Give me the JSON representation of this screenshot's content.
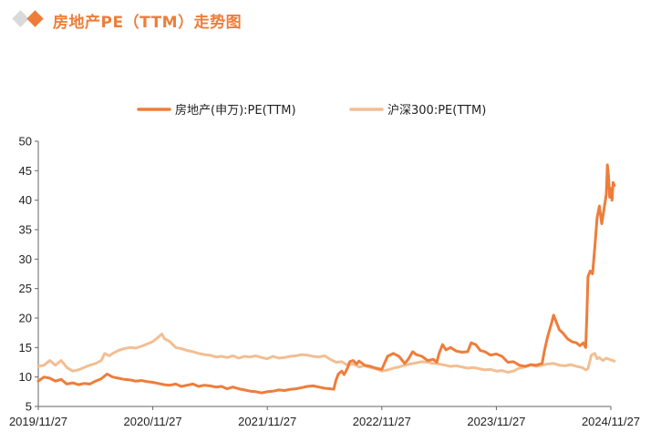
{
  "header": {
    "title": "房地产PE（TTM）走势图",
    "accent_color": "#EE7D3A",
    "secondary_color": "#D9D9D9"
  },
  "chart_data": {
    "type": "line",
    "title": "房地产PE（TTM）走势图",
    "xlabel": "",
    "ylabel": "",
    "ylim": [
      5,
      50
    ],
    "yticks": [
      5,
      10,
      15,
      20,
      25,
      30,
      35,
      40,
      45,
      50
    ],
    "xlim": [
      0,
      5
    ],
    "xticks": [
      0,
      1,
      2,
      3,
      4,
      5
    ],
    "xtick_labels": [
      "2019/11/27",
      "2020/11/27",
      "2021/11/27",
      "2022/11/27",
      "2023/11/27",
      "2024/11/27"
    ],
    "grid": false,
    "legend_position": "top-center",
    "series": [
      {
        "name": "房地产(申万):PE(TTM)",
        "color": "#EE7D3A",
        "points": [
          [
            0.0,
            9.3
          ],
          [
            0.05,
            10.0
          ],
          [
            0.1,
            9.8
          ],
          [
            0.15,
            9.3
          ],
          [
            0.2,
            9.6
          ],
          [
            0.25,
            8.8
          ],
          [
            0.3,
            9.0
          ],
          [
            0.35,
            8.7
          ],
          [
            0.4,
            8.9
          ],
          [
            0.45,
            8.8
          ],
          [
            0.5,
            9.3
          ],
          [
            0.55,
            9.7
          ],
          [
            0.6,
            10.5
          ],
          [
            0.65,
            10.0
          ],
          [
            0.7,
            9.8
          ],
          [
            0.75,
            9.6
          ],
          [
            0.8,
            9.5
          ],
          [
            0.85,
            9.3
          ],
          [
            0.9,
            9.4
          ],
          [
            0.95,
            9.2
          ],
          [
            1.0,
            9.1
          ],
          [
            1.05,
            8.9
          ],
          [
            1.1,
            8.7
          ],
          [
            1.15,
            8.6
          ],
          [
            1.2,
            8.8
          ],
          [
            1.25,
            8.4
          ],
          [
            1.3,
            8.6
          ],
          [
            1.35,
            8.8
          ],
          [
            1.4,
            8.4
          ],
          [
            1.45,
            8.6
          ],
          [
            1.5,
            8.5
          ],
          [
            1.55,
            8.3
          ],
          [
            1.6,
            8.4
          ],
          [
            1.65,
            8.0
          ],
          [
            1.7,
            8.3
          ],
          [
            1.75,
            8.0
          ],
          [
            1.8,
            7.8
          ],
          [
            1.85,
            7.6
          ],
          [
            1.9,
            7.5
          ],
          [
            1.95,
            7.3
          ],
          [
            2.0,
            7.5
          ],
          [
            2.05,
            7.6
          ],
          [
            2.1,
            7.8
          ],
          [
            2.15,
            7.7
          ],
          [
            2.2,
            7.9
          ],
          [
            2.25,
            8.0
          ],
          [
            2.3,
            8.2
          ],
          [
            2.35,
            8.4
          ],
          [
            2.4,
            8.5
          ],
          [
            2.45,
            8.3
          ],
          [
            2.5,
            8.1
          ],
          [
            2.55,
            8.0
          ],
          [
            2.58,
            7.9
          ],
          [
            2.6,
            9.5
          ],
          [
            2.62,
            10.5
          ],
          [
            2.65,
            11.0
          ],
          [
            2.67,
            10.4
          ],
          [
            2.7,
            11.5
          ],
          [
            2.72,
            12.6
          ],
          [
            2.75,
            12.8
          ],
          [
            2.78,
            12.2
          ],
          [
            2.8,
            12.7
          ],
          [
            2.85,
            12.0
          ],
          [
            2.9,
            11.8
          ],
          [
            2.95,
            11.5
          ],
          [
            3.0,
            11.3
          ],
          [
            3.05,
            13.5
          ],
          [
            3.1,
            14.0
          ],
          [
            3.15,
            13.5
          ],
          [
            3.2,
            12.3
          ],
          [
            3.23,
            13.0
          ],
          [
            3.27,
            14.3
          ],
          [
            3.3,
            13.8
          ],
          [
            3.35,
            13.5
          ],
          [
            3.4,
            12.8
          ],
          [
            3.45,
            13.0
          ],
          [
            3.48,
            12.5
          ],
          [
            3.5,
            14.0
          ],
          [
            3.53,
            15.5
          ],
          [
            3.56,
            14.6
          ],
          [
            3.6,
            15.0
          ],
          [
            3.65,
            14.4
          ],
          [
            3.7,
            14.2
          ],
          [
            3.75,
            14.3
          ],
          [
            3.78,
            15.8
          ],
          [
            3.82,
            15.5
          ],
          [
            3.86,
            14.5
          ],
          [
            3.9,
            14.3
          ],
          [
            3.95,
            13.7
          ],
          [
            4.0,
            13.9
          ],
          [
            4.05,
            13.5
          ],
          [
            4.1,
            12.5
          ],
          [
            4.15,
            12.6
          ],
          [
            4.2,
            12.0
          ],
          [
            4.25,
            11.8
          ],
          [
            4.3,
            12.1
          ],
          [
            4.35,
            12.0
          ],
          [
            4.4,
            12.3
          ],
          [
            4.42,
            14.5
          ],
          [
            4.45,
            17.0
          ],
          [
            4.48,
            19.0
          ],
          [
            4.5,
            20.5
          ],
          [
            4.52,
            19.5
          ],
          [
            4.55,
            18.0
          ],
          [
            4.58,
            17.5
          ],
          [
            4.62,
            16.5
          ],
          [
            4.66,
            16.0
          ],
          [
            4.7,
            15.8
          ],
          [
            4.73,
            15.3
          ],
          [
            4.76,
            15.8
          ],
          [
            4.78,
            15.0
          ],
          [
            4.79,
            20.0
          ],
          [
            4.8,
            27.0
          ],
          [
            4.82,
            28.0
          ],
          [
            4.84,
            27.5
          ],
          [
            4.86,
            32.0
          ],
          [
            4.88,
            37.0
          ],
          [
            4.9,
            39.0
          ],
          [
            4.92,
            36.0
          ],
          [
            4.94,
            38.5
          ],
          [
            4.96,
            41.0
          ],
          [
            4.97,
            46.0
          ],
          [
            4.98,
            44.0
          ],
          [
            4.99,
            40.5
          ],
          [
            5.0,
            42.0
          ],
          [
            5.01,
            40.0
          ],
          [
            5.02,
            43.0
          ],
          [
            5.03,
            42.5
          ]
        ]
      },
      {
        "name": "沪深300:PE(TTM)",
        "color": "#F2BE93",
        "points": [
          [
            0.0,
            11.8
          ],
          [
            0.05,
            12.0
          ],
          [
            0.1,
            12.8
          ],
          [
            0.15,
            12.0
          ],
          [
            0.2,
            12.8
          ],
          [
            0.25,
            11.6
          ],
          [
            0.3,
            11.0
          ],
          [
            0.35,
            11.2
          ],
          [
            0.4,
            11.6
          ],
          [
            0.45,
            12.0
          ],
          [
            0.5,
            12.3
          ],
          [
            0.55,
            12.8
          ],
          [
            0.58,
            14.0
          ],
          [
            0.62,
            13.6
          ],
          [
            0.65,
            14.0
          ],
          [
            0.7,
            14.5
          ],
          [
            0.75,
            14.8
          ],
          [
            0.8,
            15.0
          ],
          [
            0.85,
            14.9
          ],
          [
            0.9,
            15.2
          ],
          [
            0.95,
            15.6
          ],
          [
            1.0,
            16.0
          ],
          [
            1.05,
            16.8
          ],
          [
            1.08,
            17.3
          ],
          [
            1.1,
            16.5
          ],
          [
            1.15,
            16.0
          ],
          [
            1.2,
            15.0
          ],
          [
            1.25,
            14.8
          ],
          [
            1.3,
            14.5
          ],
          [
            1.35,
            14.3
          ],
          [
            1.4,
            14.0
          ],
          [
            1.45,
            13.8
          ],
          [
            1.5,
            13.7
          ],
          [
            1.55,
            13.4
          ],
          [
            1.6,
            13.5
          ],
          [
            1.65,
            13.3
          ],
          [
            1.7,
            13.6
          ],
          [
            1.75,
            13.2
          ],
          [
            1.8,
            13.5
          ],
          [
            1.85,
            13.4
          ],
          [
            1.9,
            13.6
          ],
          [
            1.95,
            13.3
          ],
          [
            2.0,
            13.1
          ],
          [
            2.05,
            13.5
          ],
          [
            2.1,
            13.2
          ],
          [
            2.15,
            13.3
          ],
          [
            2.2,
            13.5
          ],
          [
            2.25,
            13.6
          ],
          [
            2.3,
            13.8
          ],
          [
            2.35,
            13.7
          ],
          [
            2.4,
            13.5
          ],
          [
            2.45,
            13.4
          ],
          [
            2.5,
            13.6
          ],
          [
            2.55,
            13.0
          ],
          [
            2.6,
            12.5
          ],
          [
            2.65,
            12.6
          ],
          [
            2.7,
            12.0
          ],
          [
            2.75,
            12.2
          ],
          [
            2.8,
            11.7
          ],
          [
            2.85,
            11.9
          ],
          [
            2.9,
            11.6
          ],
          [
            2.95,
            11.4
          ],
          [
            3.0,
            11.0
          ],
          [
            3.05,
            11.2
          ],
          [
            3.1,
            11.5
          ],
          [
            3.15,
            11.7
          ],
          [
            3.2,
            12.0
          ],
          [
            3.25,
            12.2
          ],
          [
            3.3,
            12.4
          ],
          [
            3.35,
            12.6
          ],
          [
            3.4,
            12.5
          ],
          [
            3.45,
            12.3
          ],
          [
            3.5,
            12.2
          ],
          [
            3.55,
            12.0
          ],
          [
            3.6,
            11.8
          ],
          [
            3.65,
            11.9
          ],
          [
            3.7,
            11.7
          ],
          [
            3.75,
            11.5
          ],
          [
            3.8,
            11.6
          ],
          [
            3.85,
            11.4
          ],
          [
            3.9,
            11.2
          ],
          [
            3.95,
            11.3
          ],
          [
            4.0,
            11.0
          ],
          [
            4.05,
            11.1
          ],
          [
            4.1,
            10.8
          ],
          [
            4.15,
            11.0
          ],
          [
            4.2,
            11.5
          ],
          [
            4.25,
            11.7
          ],
          [
            4.3,
            12.0
          ],
          [
            4.35,
            11.8
          ],
          [
            4.4,
            12.0
          ],
          [
            4.45,
            12.2
          ],
          [
            4.5,
            12.3
          ],
          [
            4.55,
            12.0
          ],
          [
            4.6,
            11.9
          ],
          [
            4.65,
            12.1
          ],
          [
            4.7,
            11.8
          ],
          [
            4.75,
            11.6
          ],
          [
            4.78,
            11.2
          ],
          [
            4.8,
            11.4
          ],
          [
            4.83,
            13.7
          ],
          [
            4.86,
            14.0
          ],
          [
            4.88,
            13.1
          ],
          [
            4.9,
            13.3
          ],
          [
            4.93,
            12.8
          ],
          [
            4.96,
            13.2
          ],
          [
            5.0,
            12.9
          ],
          [
            5.03,
            12.7
          ]
        ]
      }
    ]
  }
}
